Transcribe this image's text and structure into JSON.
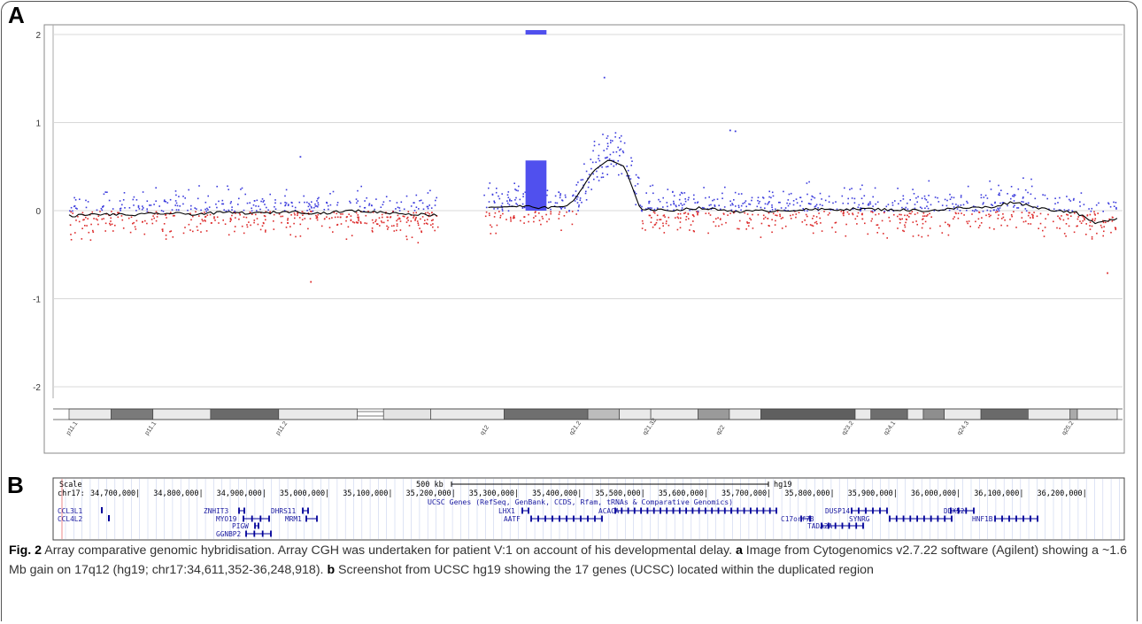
{
  "panel_a": {
    "label": "A"
  },
  "panel_b": {
    "label": "B"
  },
  "chart_data": {
    "type": "scatter",
    "title": "",
    "xlabel": "",
    "ylabel": "",
    "y_ticks": [
      "2",
      "1",
      "0",
      "-1",
      "-2"
    ],
    "ylim": [
      -2.3,
      2.05
    ],
    "grid": true,
    "series": [
      {
        "name": "",
        "mean_profile": [
          [
            0.0,
            -0.06
          ],
          [
            0.03,
            -0.04
          ],
          [
            0.06,
            -0.05
          ],
          [
            0.09,
            -0.03
          ],
          [
            0.12,
            -0.04
          ],
          [
            0.15,
            -0.02
          ],
          [
            0.18,
            -0.03
          ],
          [
            0.21,
            -0.01
          ],
          [
            0.24,
            -0.03
          ],
          [
            0.27,
            0.0
          ],
          [
            0.3,
            -0.02
          ],
          [
            0.33,
            -0.04
          ],
          [
            0.35,
            -0.05
          ],
          [
            0.4,
            0.04
          ],
          [
            0.43,
            0.05
          ],
          [
            0.46,
            0.03
          ],
          [
            0.48,
            0.08
          ],
          [
            0.5,
            0.45
          ],
          [
            0.515,
            0.58
          ],
          [
            0.53,
            0.5
          ],
          [
            0.545,
            0.02
          ],
          [
            0.57,
            0.0
          ],
          [
            0.6,
            0.03
          ],
          [
            0.64,
            -0.01
          ],
          [
            0.7,
            0.01
          ],
          [
            0.76,
            0.02
          ],
          [
            0.82,
            0.0
          ],
          [
            0.85,
            0.03
          ],
          [
            0.88,
            0.04
          ],
          [
            0.9,
            0.1
          ],
          [
            0.93,
            0.02
          ],
          [
            0.96,
            -0.02
          ],
          [
            0.98,
            -0.15
          ],
          [
            1.0,
            -0.08
          ]
        ]
      }
    ],
    "gain_segment": {
      "height": 0.57,
      "label": "~1.6 Mb gain"
    },
    "outlier_points": [
      [
        0.51,
        1.52
      ],
      [
        0.63,
        0.92
      ],
      [
        0.635,
        0.91
      ],
      [
        0.22,
        0.62
      ],
      [
        0.99,
        -0.7
      ],
      [
        0.23,
        -0.8
      ]
    ],
    "ideogram_bands": [
      "p11.1",
      "p11.1",
      "p11.2",
      "q12",
      "q21.2",
      "q21.32",
      "q22",
      "q23.2",
      "q24.1",
      "q24.3",
      "q25.2"
    ]
  },
  "panel_b_track": {
    "scale_label": "Scale",
    "scale_value": "500 kb",
    "assembly": "hg19",
    "chrom_label": "chr17:",
    "positions": [
      "34,700,000|",
      "34,800,000|",
      "34,900,000|",
      "35,000,000|",
      "35,100,000|",
      "35,200,000|",
      "35,300,000|",
      "35,400,000|",
      "35,500,000|",
      "35,600,000|",
      "35,700,000|",
      "35,800,000|",
      "35,900,000|",
      "36,000,000|",
      "36,100,000|",
      "36,200,000|"
    ],
    "track_title": "UCSC Genes (RefSeq, GenBank, CCDS, Rfam, tRNAs & Comparative Genomics)",
    "left_labels": [
      "CCL3L1",
      "CCL4L2"
    ],
    "genes": [
      "ZNHIT3",
      "DHRS11",
      "MYO19",
      "MRM1",
      "PIGW",
      "GGNBP2",
      "LHX1",
      "ACACA",
      "AATF",
      "DUSP14",
      "DDX52",
      "C17orf78",
      "SYNRG",
      "HNF1B",
      "TADA2A"
    ]
  },
  "caption": {
    "fig_label": "Fig. 2",
    "title": "Array comparative genomic hybridisation.",
    "body1": " Array CGH was undertaken for patient V:1 on account of his developmental delay. ",
    "a_label": "a",
    "body2": " Image from Cytogenomics v2.7.22 software (Agilent) showing a ~1.6 Mb gain on 17q12 (hg19; chr17:34,611,352-36,248,918). ",
    "b_label": "b",
    "body3": " Screenshot from UCSC hg19 showing the 17 genes (UCSC) located within the duplicated region"
  }
}
